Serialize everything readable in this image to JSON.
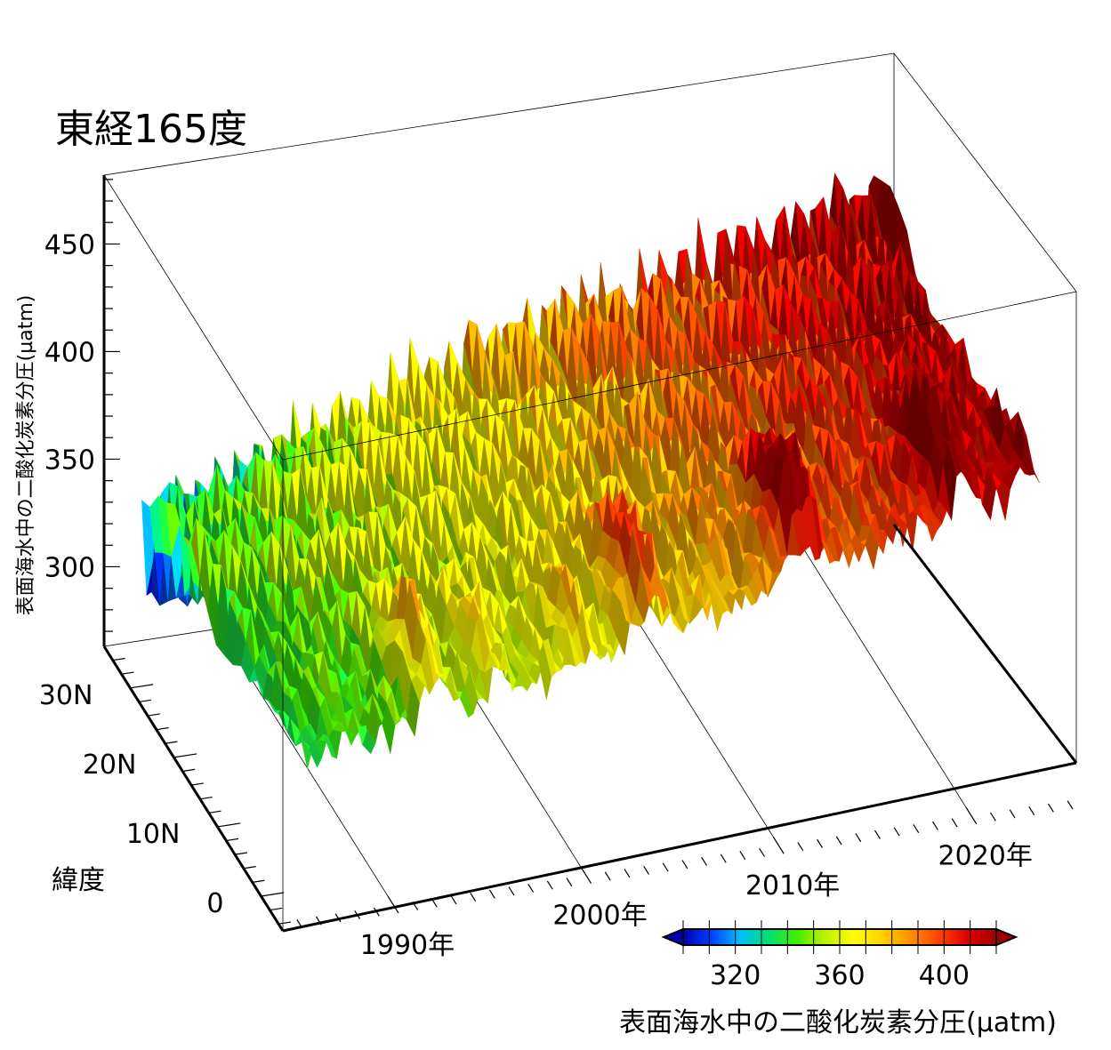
{
  "chart_data": {
    "type": "surface3d",
    "title": "東経165度",
    "zlabel": "表面海水中の二酸化炭素分圧(µatm)",
    "ylabel": "緯度",
    "xlabel": "",
    "x_ticks": [
      "1990年",
      "2000年",
      "2010年",
      "2020年"
    ],
    "x_tick_values": [
      1990,
      2000,
      2010,
      2020
    ],
    "xlim": [
      1984,
      2025
    ],
    "y_ticks": [
      "0",
      "10N",
      "20N",
      "30N"
    ],
    "y_tick_values": [
      0,
      10,
      20,
      30
    ],
    "ylim": [
      -5,
      36
    ],
    "z_ticks": [
      "300",
      "350",
      "400",
      "450"
    ],
    "z_tick_values": [
      300,
      350,
      400,
      450
    ],
    "zlim": [
      263,
      482
    ],
    "colorbar": {
      "label": "表面海水中の二酸化炭素分圧(µatm)",
      "ticks": [
        "320",
        "360",
        "400"
      ],
      "tick_values": [
        320,
        360,
        400
      ],
      "range": [
        300,
        420
      ],
      "colors": [
        "#0000b0",
        "#0040ff",
        "#00c0ff",
        "#00e070",
        "#40f000",
        "#c0f000",
        "#ffff00",
        "#ffd000",
        "#ff9000",
        "#ff4000",
        "#e00000",
        "#a00000"
      ]
    },
    "series_trend": {
      "years": [
        1984,
        1990,
        2000,
        2010,
        2020,
        2025
      ],
      "pco2_mean": [
        335,
        345,
        362,
        385,
        405,
        415
      ]
    }
  }
}
